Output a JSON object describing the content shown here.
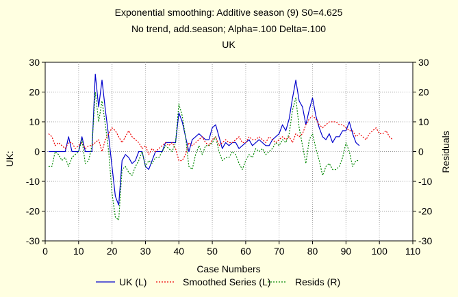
{
  "chart_data": {
    "type": "line",
    "title": "Exponential smoothing: Additive season (9) S0=4.625",
    "subtitle": "No trend, add.season; Alpha=.100  Delta=.100",
    "subtitle2": "UK",
    "xlabel": "Case Numbers",
    "ylabel_left": "UK:",
    "ylabel_right": "Residuals",
    "xlim": [
      0,
      110
    ],
    "ylim_left": [
      -30,
      30
    ],
    "ylim_right": [
      -30,
      30
    ],
    "x_ticks": [
      0,
      10,
      20,
      30,
      40,
      50,
      60,
      70,
      80,
      90,
      100,
      110
    ],
    "y_ticks": [
      -30,
      -20,
      -10,
      0,
      10,
      20,
      30
    ],
    "grid": true,
    "legend_position": "bottom",
    "series": [
      {
        "name": "UK (L)",
        "axis": "left",
        "color": "#0000cc",
        "style": "solid",
        "x": [
          1,
          2,
          3,
          4,
          5,
          6,
          7,
          8,
          9,
          10,
          11,
          12,
          13,
          14,
          15,
          16,
          17,
          18,
          19,
          20,
          21,
          22,
          23,
          24,
          25,
          26,
          27,
          28,
          29,
          30,
          31,
          32,
          33,
          34,
          35,
          36,
          37,
          38,
          39,
          40,
          41,
          42,
          43,
          44,
          45,
          46,
          47,
          48,
          49,
          50,
          51,
          52,
          53,
          54,
          55,
          56,
          57,
          58,
          59,
          60,
          61,
          62,
          63,
          64,
          65,
          66,
          67,
          68,
          69,
          70,
          71,
          72,
          73,
          74,
          75,
          76,
          77,
          78,
          79,
          80,
          81,
          82,
          83,
          84,
          85,
          86,
          87,
          88,
          89,
          90,
          91,
          92,
          93,
          94
        ],
        "values": [
          0,
          0,
          0,
          0,
          0,
          0,
          5,
          0,
          0,
          0,
          5,
          0,
          0,
          0,
          26,
          15,
          24,
          14,
          5,
          -5,
          -15,
          -18,
          -3,
          -1,
          -2,
          -4,
          -3,
          0,
          0,
          -5,
          -6,
          -3,
          0,
          0,
          0,
          3,
          3,
          3,
          3,
          13,
          10,
          5,
          0,
          4,
          5,
          6,
          5,
          4,
          4,
          8,
          9,
          5,
          1,
          3,
          2,
          3,
          3,
          1,
          2,
          3,
          4,
          2,
          3,
          4,
          3,
          2,
          2,
          4,
          5,
          6,
          9,
          7,
          11,
          18,
          24,
          17,
          15,
          9,
          14,
          18,
          12,
          8,
          5,
          4,
          6,
          3,
          5,
          5,
          7,
          7,
          10,
          6,
          3,
          2
        ]
      },
      {
        "name": "Smoothed Series (L)",
        "axis": "left",
        "color": "#ee0000",
        "style": "dotted",
        "x": [
          1,
          2,
          3,
          4,
          5,
          6,
          7,
          8,
          9,
          10,
          11,
          12,
          13,
          14,
          15,
          16,
          17,
          18,
          19,
          20,
          21,
          22,
          23,
          24,
          25,
          26,
          27,
          28,
          29,
          30,
          31,
          32,
          33,
          34,
          35,
          36,
          37,
          38,
          39,
          40,
          41,
          42,
          43,
          44,
          45,
          46,
          47,
          48,
          49,
          50,
          51,
          52,
          53,
          54,
          55,
          56,
          57,
          58,
          59,
          60,
          61,
          62,
          63,
          64,
          65,
          66,
          67,
          68,
          69,
          70,
          71,
          72,
          73,
          74,
          75,
          76,
          77,
          78,
          79,
          80,
          81,
          82,
          83,
          84,
          85,
          86,
          87,
          88,
          89,
          90,
          91,
          92,
          93,
          94,
          95,
          96,
          97,
          98,
          99,
          100,
          101,
          102,
          103,
          104
        ],
        "values": [
          6,
          5,
          2,
          3,
          2,
          1,
          3,
          3,
          1,
          2,
          3,
          1,
          2,
          2,
          3,
          4,
          0,
          4,
          6,
          8,
          7,
          5,
          3,
          5,
          7,
          5,
          4,
          3,
          1,
          2,
          -1,
          1,
          0,
          1,
          2,
          3,
          2,
          3,
          1,
          -3,
          -3,
          -1,
          3,
          2,
          3,
          4,
          5,
          3,
          2,
          4,
          5,
          2,
          3,
          4,
          3,
          3,
          4,
          5,
          3,
          3,
          5,
          4,
          4,
          5,
          4,
          3,
          5,
          4,
          3,
          4,
          5,
          4,
          5,
          3,
          6,
          5,
          6,
          9,
          11,
          12,
          11,
          9,
          8,
          9,
          10,
          10,
          10,
          9,
          9,
          8,
          7,
          7,
          5,
          6,
          5,
          4,
          6,
          7,
          8,
          6,
          6,
          7,
          5,
          4
        ]
      },
      {
        "name": "Resids (R)",
        "axis": "right",
        "color": "#008800",
        "style": "dotted",
        "x": [
          1,
          2,
          3,
          4,
          5,
          6,
          7,
          8,
          9,
          10,
          11,
          12,
          13,
          14,
          15,
          16,
          17,
          18,
          19,
          20,
          21,
          22,
          23,
          24,
          25,
          26,
          27,
          28,
          29,
          30,
          31,
          32,
          33,
          34,
          35,
          36,
          37,
          38,
          39,
          40,
          41,
          42,
          43,
          44,
          45,
          46,
          47,
          48,
          49,
          50,
          51,
          52,
          53,
          54,
          55,
          56,
          57,
          58,
          59,
          60,
          61,
          62,
          63,
          64,
          65,
          66,
          67,
          68,
          69,
          70,
          71,
          72,
          73,
          74,
          75,
          76,
          77,
          78,
          79,
          80,
          81,
          82,
          83,
          84,
          85,
          86,
          87,
          88,
          89,
          90,
          91,
          92,
          93,
          94
        ],
        "values": [
          -5,
          -5,
          0,
          -1,
          -3,
          -2,
          -5,
          -2,
          -1,
          0,
          4,
          -4,
          -3,
          2,
          20,
          10,
          17,
          9,
          0,
          -14,
          -22,
          -23,
          -6,
          -5,
          -7,
          -8,
          -5,
          -3,
          0,
          -5,
          -3,
          -4,
          -2,
          -2,
          0,
          2,
          1,
          0,
          3,
          16,
          12,
          5,
          -5,
          -6,
          -1,
          2,
          -1,
          2,
          2,
          3,
          5,
          0,
          -3,
          -2,
          -2,
          0,
          -1,
          -4,
          -6,
          -3,
          -1,
          -2,
          1,
          0,
          1,
          -1,
          0,
          1,
          3,
          2,
          4,
          3,
          6,
          14,
          18,
          8,
          2,
          -4,
          4,
          6,
          1,
          -3,
          -8,
          -5,
          -4,
          -6,
          -6,
          -5,
          -2,
          3,
          0,
          -5,
          -3,
          -3
        ]
      }
    ]
  }
}
